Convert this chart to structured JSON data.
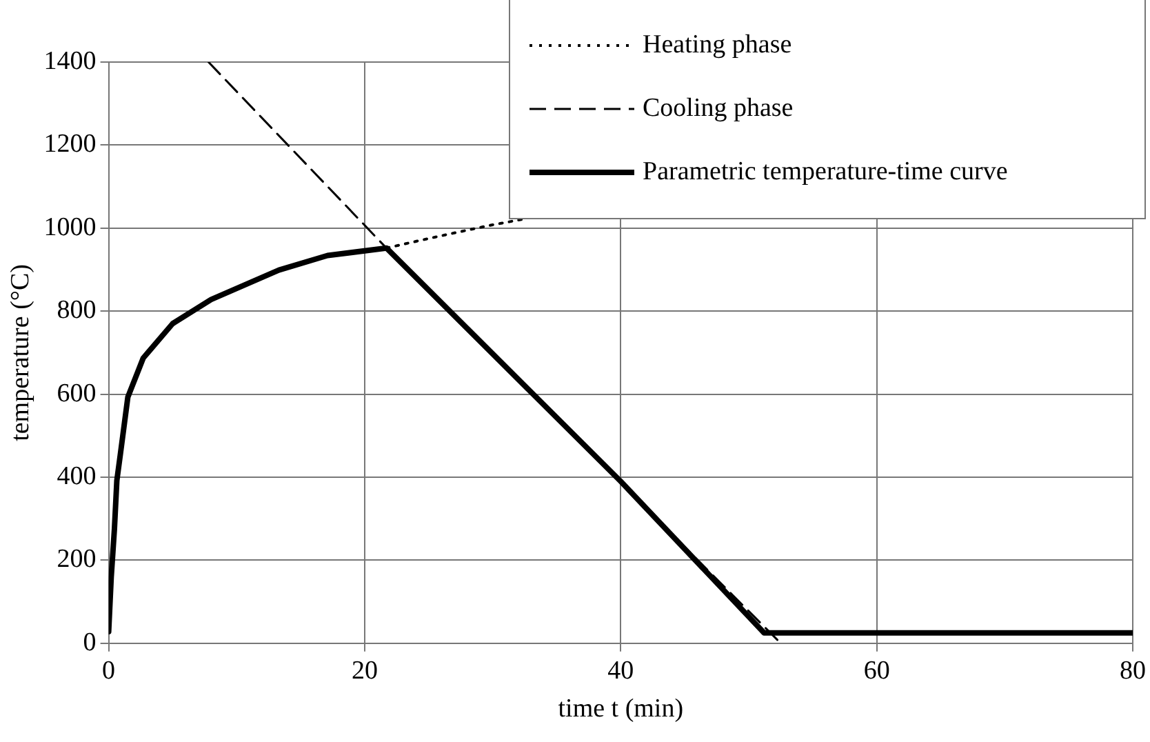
{
  "chart_data": {
    "type": "line",
    "xlabel": "time t (min)",
    "ylabel": "temperature (°C)",
    "xlim": [
      0,
      80
    ],
    "xticks": [
      0,
      20,
      40,
      60,
      80
    ],
    "ylim": [
      0,
      1400
    ],
    "yticks": [
      0,
      200,
      400,
      600,
      800,
      1000,
      1200,
      1400
    ],
    "grid": true,
    "legend": "top right",
    "marker": "none",
    "series": [
      {
        "name": "Heating phase",
        "color": "#000000",
        "line_style": "dotted",
        "x": [
          21.7,
          25,
          28,
          30,
          32.3
        ],
        "values": [
          952,
          975,
          995,
          1008,
          1021
        ]
      },
      {
        "name": "Cooling phase",
        "color": "#000000",
        "line_style": "dashed",
        "x": [
          7.8,
          21.7,
          52.5
        ],
        "values": [
          1400,
          952,
          0
        ]
      },
      {
        "name": "Parametric temperature-time curve",
        "color": "#000000",
        "line_style": "solid",
        "x": [
          0,
          0.2,
          0.45,
          0.64,
          0.9,
          1.5,
          2.7,
          5,
          8,
          13.3,
          17.1,
          21.7,
          40,
          51.2,
          80
        ],
        "values": [
          28,
          159,
          275,
          392,
          452,
          593,
          687,
          770,
          828,
          899,
          934,
          952,
          390,
          25,
          25
        ]
      }
    ]
  }
}
